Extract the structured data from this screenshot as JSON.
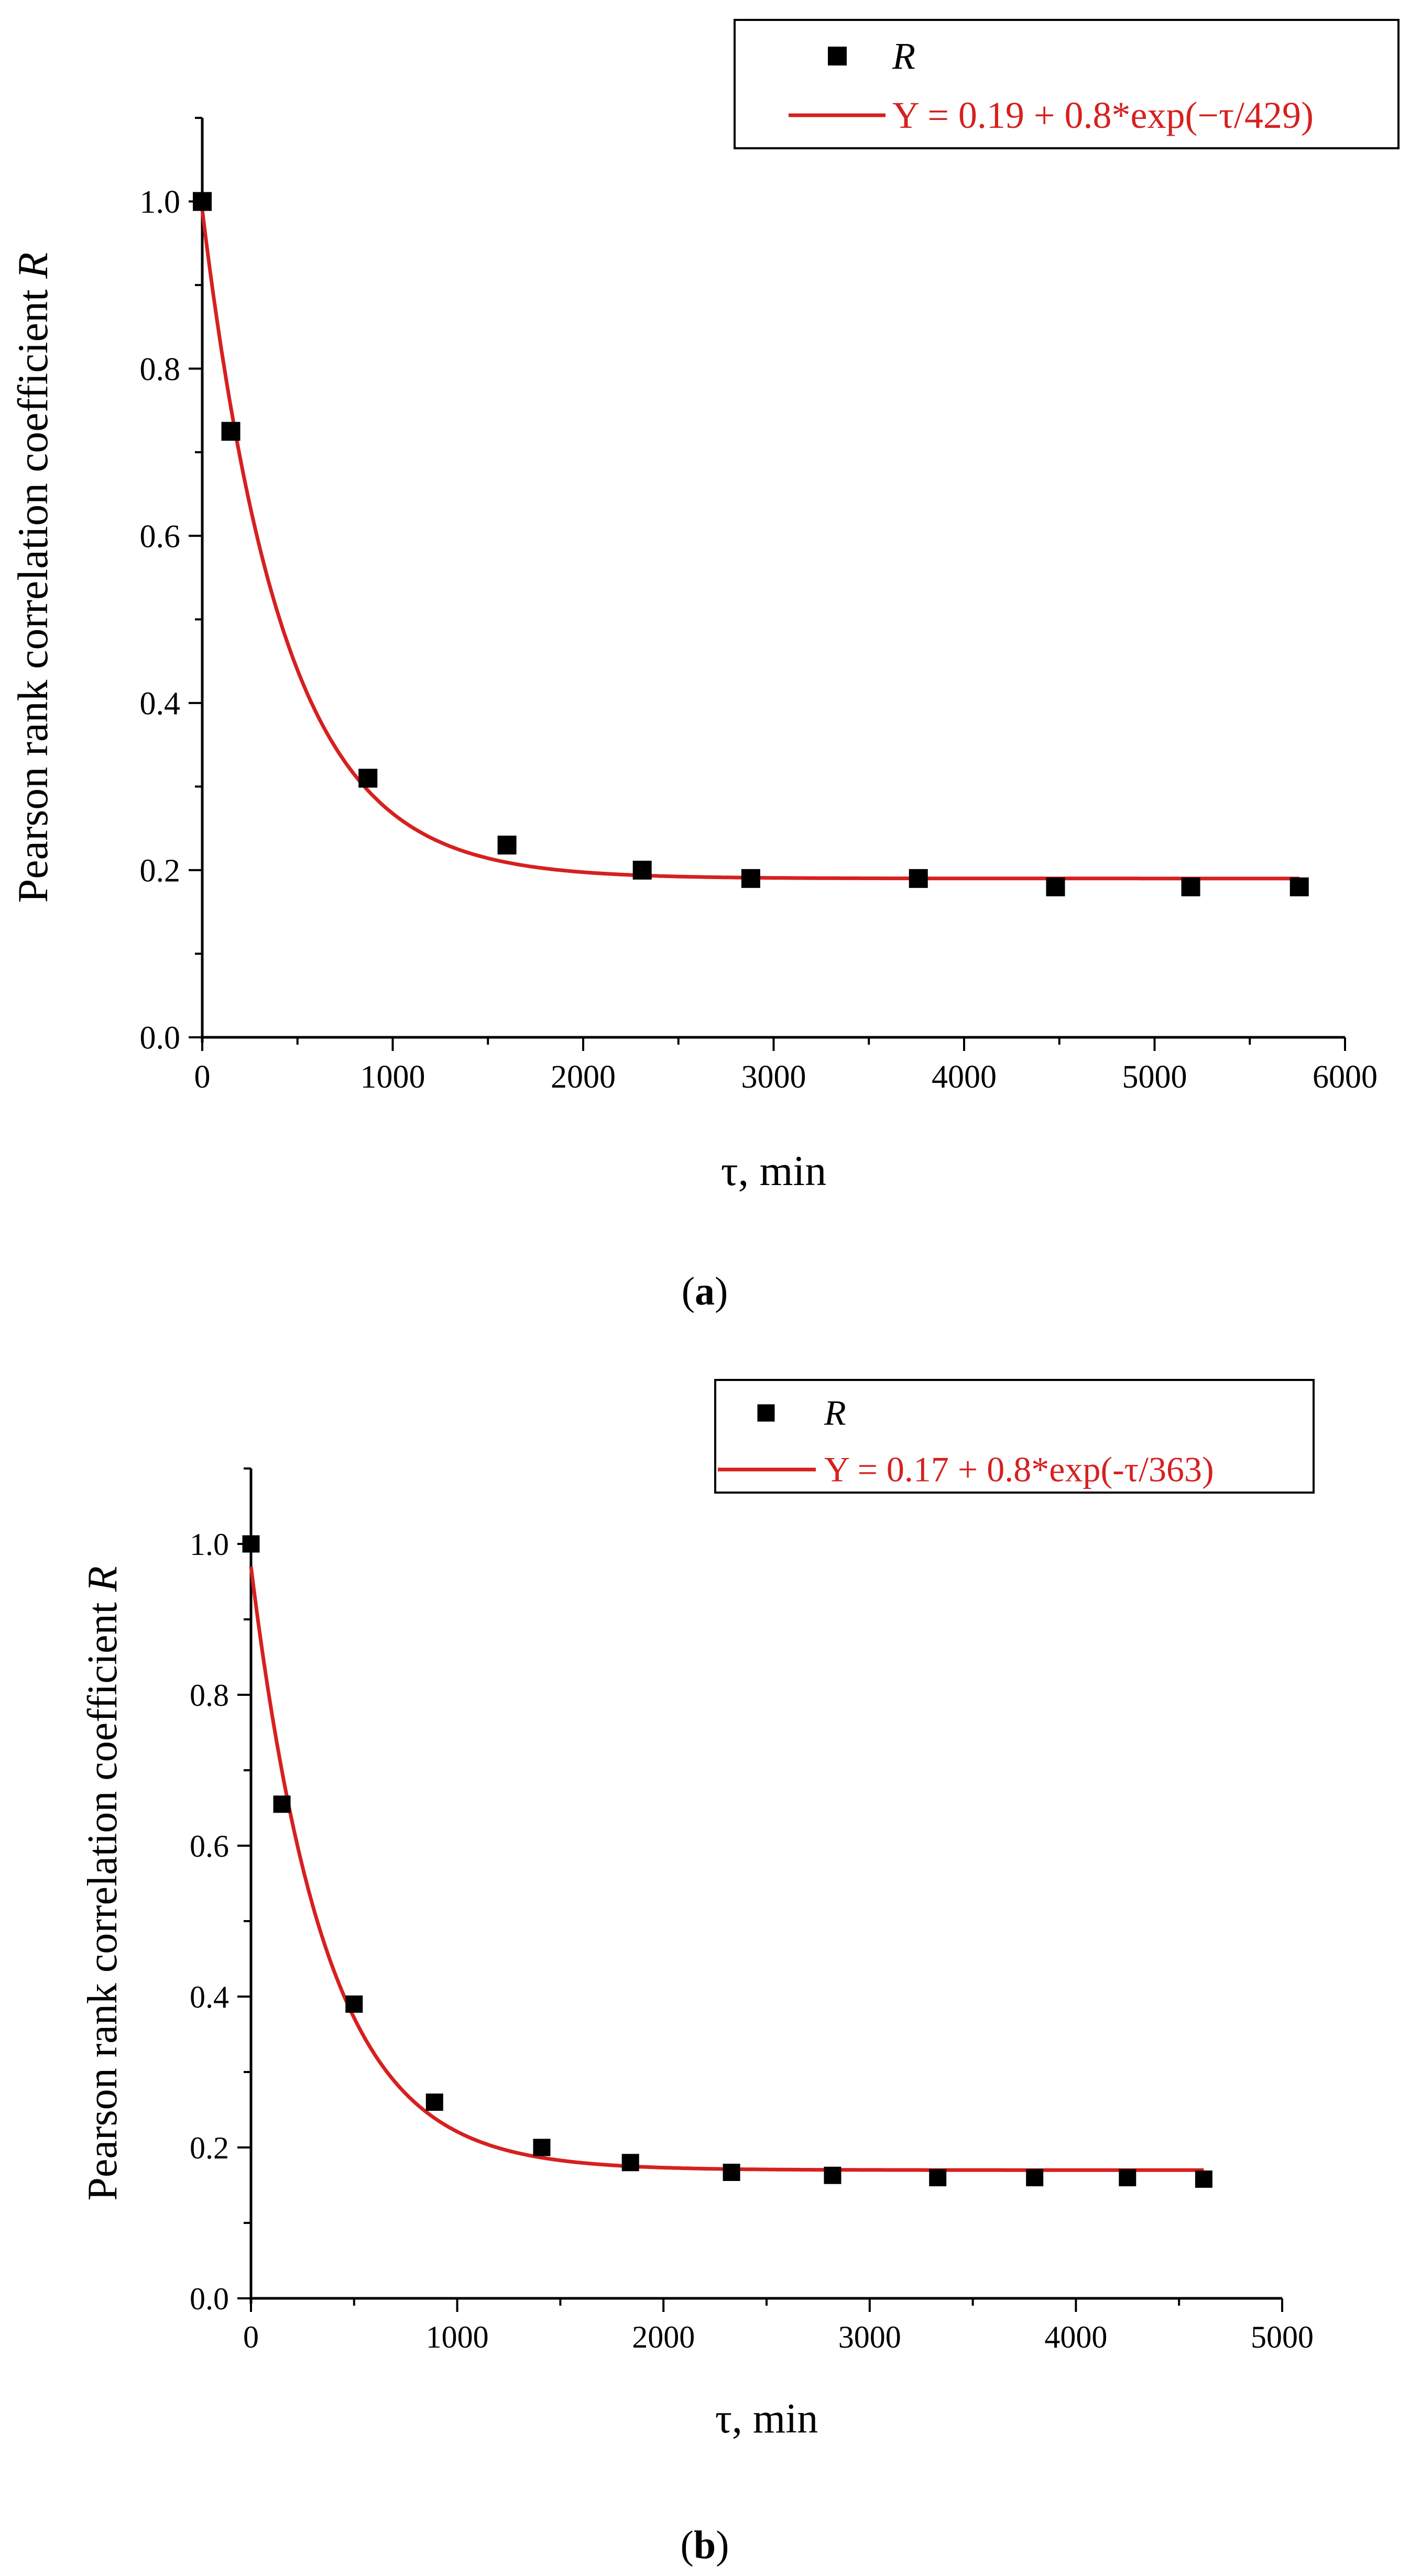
{
  "figure": {
    "panels": [
      "a",
      "b"
    ]
  },
  "chart_data": [
    {
      "type": "scatter",
      "panel_label": "a",
      "title": "",
      "xlabel": "τ, min",
      "ylabel": "Pearson rank correlation coefficient R",
      "ylabel_prefix": "Pearson rank correlation coefficient ",
      "ylabel_symbol": "R",
      "xlim": [
        0,
        6000
      ],
      "ylim": [
        0.0,
        1.1
      ],
      "xticks": [
        0,
        1000,
        2000,
        3000,
        4000,
        5000,
        6000
      ],
      "xtick_labels": [
        "0",
        "1000",
        "2000",
        "3000",
        "4000",
        "5000",
        "6000"
      ],
      "yticks": [
        0.0,
        0.2,
        0.4,
        0.6,
        0.8,
        1.0
      ],
      "ytick_labels": [
        "0.0",
        "0.2",
        "0.4",
        "0.6",
        "0.8",
        "1.0"
      ],
      "grid": false,
      "legend_position": "top-right",
      "series": [
        {
          "name": "R",
          "kind": "markers",
          "marker": "square",
          "color": "#000000",
          "x": [
            0,
            150,
            870,
            1600,
            2310,
            2880,
            3760,
            4480,
            5190,
            5760
          ],
          "y": [
            1.0,
            0.725,
            0.31,
            0.23,
            0.2,
            0.19,
            0.19,
            0.18,
            0.18,
            0.18
          ]
        },
        {
          "name": "Y = 0.19 + 0.8*exp(−τ/429)",
          "kind": "fit",
          "color": "#d62020",
          "model": {
            "y0": 0.19,
            "A": 0.8,
            "t": 429
          },
          "x_range": [
            0,
            5760
          ]
        }
      ]
    },
    {
      "type": "scatter",
      "panel_label": "b",
      "title": "",
      "xlabel": "τ, min",
      "ylabel": "Pearson rank correlation coefficient R",
      "ylabel_prefix": "Pearson rank correlation coefficient ",
      "ylabel_symbol": "R",
      "xlim": [
        0,
        5000
      ],
      "ylim": [
        0.0,
        1.1
      ],
      "xticks": [
        0,
        1000,
        2000,
        3000,
        4000,
        5000
      ],
      "xtick_labels": [
        "0",
        "1000",
        "2000",
        "3000",
        "4000",
        "5000"
      ],
      "yticks": [
        0.0,
        0.2,
        0.4,
        0.6,
        0.8,
        1.0
      ],
      "ytick_labels": [
        "0.0",
        "0.2",
        "0.4",
        "0.6",
        "0.8",
        "1.0"
      ],
      "grid": false,
      "legend_position": "top-right",
      "series": [
        {
          "name": "R",
          "kind": "markers",
          "marker": "square",
          "color": "#000000",
          "x": [
            0,
            150,
            500,
            890,
            1410,
            1840,
            2330,
            2820,
            3330,
            3800,
            4250,
            4620
          ],
          "y": [
            1.0,
            0.655,
            0.39,
            0.26,
            0.2,
            0.18,
            0.167,
            0.163,
            0.16,
            0.16,
            0.16,
            0.158
          ]
        },
        {
          "name": "Y = 0.17 + 0.8*exp(-τ/363)",
          "kind": "fit",
          "color": "#d62020",
          "model": {
            "y0": 0.17,
            "A": 0.8,
            "t": 363
          },
          "x_range": [
            0,
            4620
          ]
        }
      ]
    }
  ]
}
